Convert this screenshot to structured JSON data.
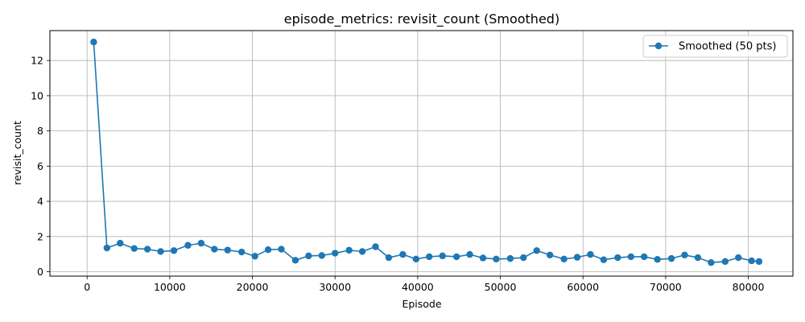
{
  "chart_data": {
    "type": "line",
    "title": "episode_metrics: revisit_count (Smoothed)",
    "xlabel": "Episode",
    "ylabel": "revisit_count",
    "xlim": [
      -4500,
      85400
    ],
    "ylim": [
      -0.25,
      13.7
    ],
    "xticks": [
      0,
      10000,
      20000,
      30000,
      40000,
      50000,
      60000,
      70000,
      80000
    ],
    "yticks": [
      0,
      2,
      4,
      6,
      8,
      10,
      12
    ],
    "grid": true,
    "legend_position": "top-right",
    "color": "#1f77b4",
    "series": [
      {
        "name": "Smoothed (50 pts)",
        "x": [
          800,
          2400,
          4000,
          5700,
          7300,
          8900,
          10500,
          12200,
          13800,
          15400,
          17000,
          18700,
          20300,
          21900,
          23500,
          25200,
          26800,
          28400,
          30000,
          31700,
          33300,
          34900,
          36500,
          38200,
          39800,
          41400,
          43000,
          44700,
          46300,
          47900,
          49500,
          51200,
          52800,
          54400,
          56000,
          57700,
          59300,
          60900,
          62500,
          64200,
          65800,
          67400,
          69000,
          70700,
          72300,
          73900,
          75500,
          77200,
          78800,
          80400,
          81300
        ],
        "y": [
          13.05,
          1.35,
          1.62,
          1.32,
          1.28,
          1.15,
          1.2,
          1.5,
          1.62,
          1.28,
          1.23,
          1.12,
          0.88,
          1.25,
          1.28,
          0.65,
          0.9,
          0.92,
          1.05,
          1.22,
          1.15,
          1.42,
          0.8,
          0.98,
          0.72,
          0.85,
          0.9,
          0.85,
          0.98,
          0.78,
          0.72,
          0.75,
          0.8,
          1.2,
          0.95,
          0.72,
          0.82,
          0.98,
          0.68,
          0.8,
          0.85,
          0.85,
          0.7,
          0.75,
          0.95,
          0.8,
          0.52,
          0.58,
          0.8,
          0.62,
          0.58
        ]
      }
    ]
  }
}
